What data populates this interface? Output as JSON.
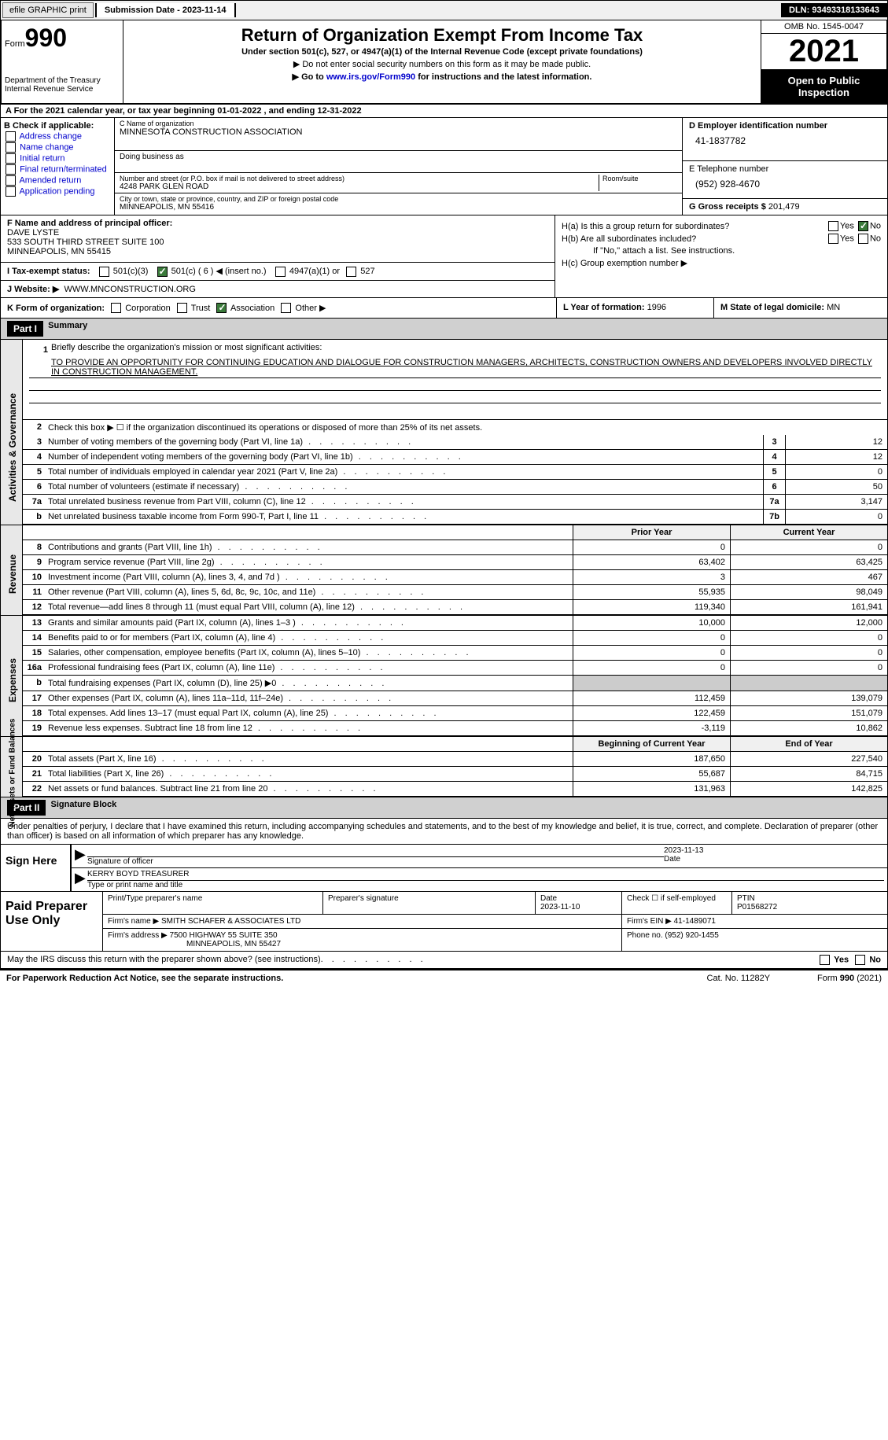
{
  "top": {
    "efile": "efile GRAPHIC print",
    "submission": "Submission Date - 2023-11-14",
    "dln": "DLN: 93493318133643"
  },
  "header": {
    "form_word": "Form",
    "form_num": "990",
    "title": "Return of Organization Exempt From Income Tax",
    "subtitle": "Under section 501(c), 527, or 4947(a)(1) of the Internal Revenue Code (except private foundations)",
    "note1": "▶ Do not enter social security numbers on this form as it may be made public.",
    "note2_pre": "▶ Go to ",
    "note2_link": "www.irs.gov/Form990",
    "note2_post": " for instructions and the latest information.",
    "dept": "Department of the Treasury Internal Revenue Service",
    "omb": "OMB No. 1545-0047",
    "year": "2021",
    "open": "Open to Public Inspection"
  },
  "rowA": "A For the 2021 calendar year, or tax year beginning 01-01-2022   , and ending 12-31-2022",
  "colB": {
    "title": "B Check if applicable:",
    "opts": [
      "Address change",
      "Name change",
      "Initial return",
      "Final return/terminated",
      "Amended return",
      "Application pending"
    ]
  },
  "colC": {
    "name_lbl": "C Name of organization",
    "name": "MINNESOTA CONSTRUCTION ASSOCIATION",
    "dba_lbl": "Doing business as",
    "street_lbl": "Number and street (or P.O. box if mail is not delivered to street address)",
    "street": "4248 PARK GLEN ROAD",
    "room_lbl": "Room/suite",
    "city_lbl": "City or town, state or province, country, and ZIP or foreign postal code",
    "city": "MINNEAPOLIS, MN  55416"
  },
  "colD": {
    "ein_lbl": "D Employer identification number",
    "ein": "41-1837782",
    "tel_lbl": "E Telephone number",
    "tel": "(952) 928-4670",
    "gross_lbl": "G Gross receipts $",
    "gross": "201,479"
  },
  "colF": {
    "lbl": "F Name and address of principal officer:",
    "name": "DAVE LYSTE",
    "addr1": "533 SOUTH THIRD STREET SUITE 100",
    "addr2": "MINNEAPOLIS, MN  55415",
    "tax_lbl": "I   Tax-exempt status:",
    "tax_501c3": "501(c)(3)",
    "tax_501c": "501(c) ( 6 ) ◀ (insert no.)",
    "tax_4947": "4947(a)(1) or",
    "tax_527": "527",
    "web_lbl": "J   Website: ▶",
    "web": "WWW.MNCONSTRUCTION.ORG"
  },
  "colH": {
    "ha": "H(a)  Is this a group return for subordinates?",
    "hb": "H(b)  Are all subordinates included?",
    "hb_note": "If \"No,\" attach a list. See instructions.",
    "hc": "H(c)  Group exemption number ▶",
    "yes": "Yes",
    "no": "No"
  },
  "rowK": {
    "form_lbl": "K Form of organization:",
    "corp": "Corporation",
    "trust": "Trust",
    "assoc": "Association",
    "other": "Other ▶",
    "year_lbl": "L Year of formation:",
    "year": "1996",
    "state_lbl": "M State of legal domicile:",
    "state": "MN"
  },
  "part1": {
    "hdr": "Part I",
    "title": "Summary",
    "vtab1": "Activities & Governance",
    "vtab2": "Revenue",
    "vtab3": "Expenses",
    "vtab4": "Net Assets or Fund Balances",
    "line1_lbl": "Briefly describe the organization's mission or most significant activities:",
    "line1_txt": "TO PROVIDE AN OPPORTUNITY FOR CONTINUING EDUCATION AND DIALOGUE FOR CONSTRUCTION MANAGERS, ARCHITECTS, CONSTRUCTION OWNERS AND DEVELOPERS INVOLVED DIRECTLY IN CONSTRUCTION MANAGEMENT.",
    "line2": "Check this box ▶ ☐ if the organization discontinued its operations or disposed of more than 25% of its net assets.",
    "rows_ag": [
      {
        "n": "3",
        "t": "Number of voting members of the governing body (Part VI, line 1a)",
        "box": "3",
        "v": "12"
      },
      {
        "n": "4",
        "t": "Number of independent voting members of the governing body (Part VI, line 1b)",
        "box": "4",
        "v": "12"
      },
      {
        "n": "5",
        "t": "Total number of individuals employed in calendar year 2021 (Part V, line 2a)",
        "box": "5",
        "v": "0"
      },
      {
        "n": "6",
        "t": "Total number of volunteers (estimate if necessary)",
        "box": "6",
        "v": "50"
      },
      {
        "n": "7a",
        "t": "Total unrelated business revenue from Part VIII, column (C), line 12",
        "box": "7a",
        "v": "3,147"
      },
      {
        "n": "b",
        "t": "Net unrelated business taxable income from Form 990-T, Part I, line 11",
        "box": "7b",
        "v": "0"
      }
    ],
    "prior_hdr": "Prior Year",
    "curr_hdr": "Current Year",
    "rows_rev": [
      {
        "n": "8",
        "t": "Contributions and grants (Part VIII, line 1h)",
        "p": "0",
        "c": "0"
      },
      {
        "n": "9",
        "t": "Program service revenue (Part VIII, line 2g)",
        "p": "63,402",
        "c": "63,425"
      },
      {
        "n": "10",
        "t": "Investment income (Part VIII, column (A), lines 3, 4, and 7d )",
        "p": "3",
        "c": "467"
      },
      {
        "n": "11",
        "t": "Other revenue (Part VIII, column (A), lines 5, 6d, 8c, 9c, 10c, and 11e)",
        "p": "55,935",
        "c": "98,049"
      },
      {
        "n": "12",
        "t": "Total revenue—add lines 8 through 11 (must equal Part VIII, column (A), line 12)",
        "p": "119,340",
        "c": "161,941"
      }
    ],
    "rows_exp": [
      {
        "n": "13",
        "t": "Grants and similar amounts paid (Part IX, column (A), lines 1–3 )",
        "p": "10,000",
        "c": "12,000"
      },
      {
        "n": "14",
        "t": "Benefits paid to or for members (Part IX, column (A), line 4)",
        "p": "0",
        "c": "0"
      },
      {
        "n": "15",
        "t": "Salaries, other compensation, employee benefits (Part IX, column (A), lines 5–10)",
        "p": "0",
        "c": "0"
      },
      {
        "n": "16a",
        "t": "Professional fundraising fees (Part IX, column (A), line 11e)",
        "p": "0",
        "c": "0"
      },
      {
        "n": "b",
        "t": "Total fundraising expenses (Part IX, column (D), line 25) ▶0",
        "p": "shade",
        "c": "shade"
      },
      {
        "n": "17",
        "t": "Other expenses (Part IX, column (A), lines 11a–11d, 11f–24e)",
        "p": "112,459",
        "c": "139,079"
      },
      {
        "n": "18",
        "t": "Total expenses. Add lines 13–17 (must equal Part IX, column (A), line 25)",
        "p": "122,459",
        "c": "151,079"
      },
      {
        "n": "19",
        "t": "Revenue less expenses. Subtract line 18 from line 12",
        "p": "-3,119",
        "c": "10,862"
      }
    ],
    "begin_hdr": "Beginning of Current Year",
    "end_hdr": "End of Year",
    "rows_net": [
      {
        "n": "20",
        "t": "Total assets (Part X, line 16)",
        "p": "187,650",
        "c": "227,540"
      },
      {
        "n": "21",
        "t": "Total liabilities (Part X, line 26)",
        "p": "55,687",
        "c": "84,715"
      },
      {
        "n": "22",
        "t": "Net assets or fund balances. Subtract line 21 from line 20",
        "p": "131,963",
        "c": "142,825"
      }
    ]
  },
  "part2": {
    "hdr": "Part II",
    "title": "Signature Block",
    "penalty": "Under penalties of perjury, I declare that I have examined this return, including accompanying schedules and statements, and to the best of my knowledge and belief, it is true, correct, and complete. Declaration of preparer (other than officer) is based on all information of which preparer has any knowledge.",
    "sign_here": "Sign Here",
    "sig_officer": "Signature of officer",
    "sig_date": "2023-11-13",
    "date_lbl": "Date",
    "officer_name": "KERRY BOYD  TREASURER",
    "type_name": "Type or print name and title",
    "paid_prep": "Paid Preparer Use Only",
    "print_name_lbl": "Print/Type preparer's name",
    "prep_sig_lbl": "Preparer's signature",
    "prep_date_lbl": "Date",
    "prep_date": "2023-11-10",
    "check_self": "Check ☐ if self-employed",
    "ptin_lbl": "PTIN",
    "ptin": "P01568272",
    "firm_name_lbl": "Firm's name    ▶",
    "firm_name": "SMITH SCHAFER & ASSOCIATES LTD",
    "firm_ein_lbl": "Firm's EIN ▶",
    "firm_ein": "41-1489071",
    "firm_addr_lbl": "Firm's address ▶",
    "firm_addr1": "7500 HIGHWAY 55 SUITE 350",
    "firm_addr2": "MINNEAPOLIS, MN  55427",
    "phone_lbl": "Phone no.",
    "phone": "(952) 920-1455",
    "may_irs": "May the IRS discuss this return with the preparer shown above? (see instructions)"
  },
  "footer": {
    "paperwork": "For Paperwork Reduction Act Notice, see the separate instructions.",
    "cat": "Cat. No. 11282Y",
    "form": "Form 990 (2021)"
  }
}
